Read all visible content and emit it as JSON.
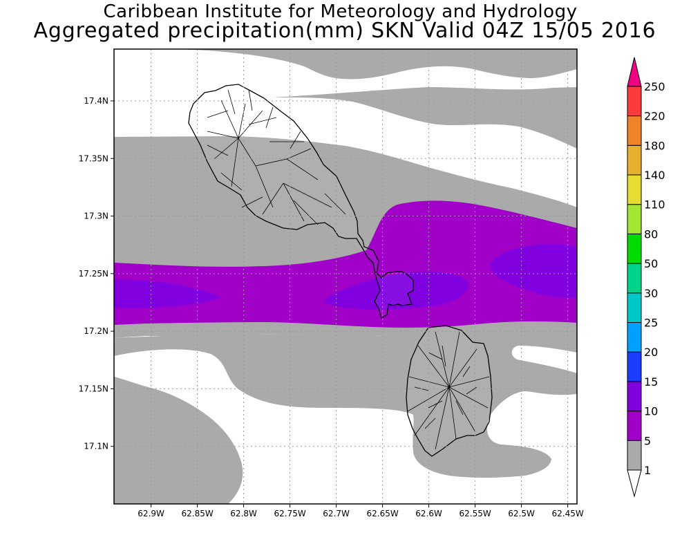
{
  "header": {
    "title": "Caribbean Institute for Meteorology and Hydrology",
    "subtitle": "Aggregated precipitation(mm) SKN Valid 04Z 15/05 2016"
  },
  "map": {
    "lon_range": [
      -62.94,
      -62.44
    ],
    "lat_range": [
      17.05,
      17.445
    ],
    "x_tick_values": [
      -62.9,
      -62.85,
      -62.8,
      -62.75,
      -62.7,
      -62.65,
      -62.6,
      -62.55,
      -62.5,
      -62.45
    ],
    "x_tick_labels": [
      "62.9W",
      "62.85W",
      "62.8W",
      "62.75W",
      "62.7W",
      "62.65W",
      "62.6W",
      "62.55W",
      "62.5W",
      "62.45W"
    ],
    "y_tick_values": [
      17.4,
      17.35,
      17.3,
      17.25,
      17.2,
      17.15,
      17.1
    ],
    "y_tick_labels": [
      "17.4N",
      "17.35N",
      "17.3N",
      "17.25N",
      "17.2N",
      "17.15N",
      "17.1N"
    ],
    "grid": "dotted",
    "regions": [
      "St. Kitts",
      "Nevis"
    ]
  },
  "legend": {
    "labels": [
      "1",
      "5",
      "10",
      "15",
      "20",
      "25",
      "30",
      "50",
      "80",
      "110",
      "140",
      "180",
      "220",
      "250"
    ],
    "colors": [
      "#ffffff",
      "#aaaaaa",
      "#a000c8",
      "#8000e0",
      "#1e3cff",
      "#00a0ff",
      "#00c8c8",
      "#00d28c",
      "#00dc00",
      "#a0e632",
      "#e6dc32",
      "#e6af2d",
      "#f08228",
      "#fa3c3c",
      "#f00082"
    ]
  },
  "chart_data": {
    "type": "heatmap",
    "title": "Aggregated precipitation(mm) SKN Valid 04Z 15/05 2016",
    "units": "mm",
    "x_axis_labels": [
      "62.9W",
      "62.85W",
      "62.8W",
      "62.75W",
      "62.7W",
      "62.65W",
      "62.6W",
      "62.55W",
      "62.5W",
      "62.45W"
    ],
    "y_axis_labels": [
      "17.4N",
      "17.35N",
      "17.3N",
      "17.25N",
      "17.2N",
      "17.15N",
      "17.1N"
    ],
    "levels": [
      1,
      5,
      10,
      15,
      20,
      25,
      30,
      50,
      80,
      110,
      140,
      180,
      220,
      250
    ],
    "shaded_classes_present": [
      "1-5",
      "5-10",
      "10-15"
    ],
    "max_class": "10-15"
  }
}
